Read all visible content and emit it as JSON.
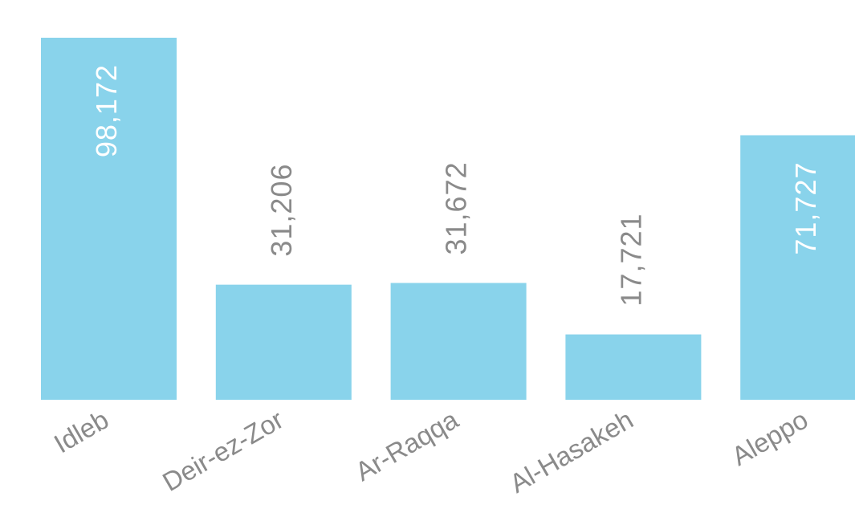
{
  "chart_data": {
    "type": "bar",
    "categories": [
      "Idleb",
      "Deir-ez-Zor",
      "Ar-Raqqa",
      "Al-Hasakeh",
      "Aleppo"
    ],
    "values": [
      98172,
      31206,
      31672,
      17721,
      71727
    ],
    "value_labels": [
      "98,172",
      "31,206",
      "31,672",
      "17,721",
      "71,727"
    ],
    "color": "#89d3eb"
  }
}
